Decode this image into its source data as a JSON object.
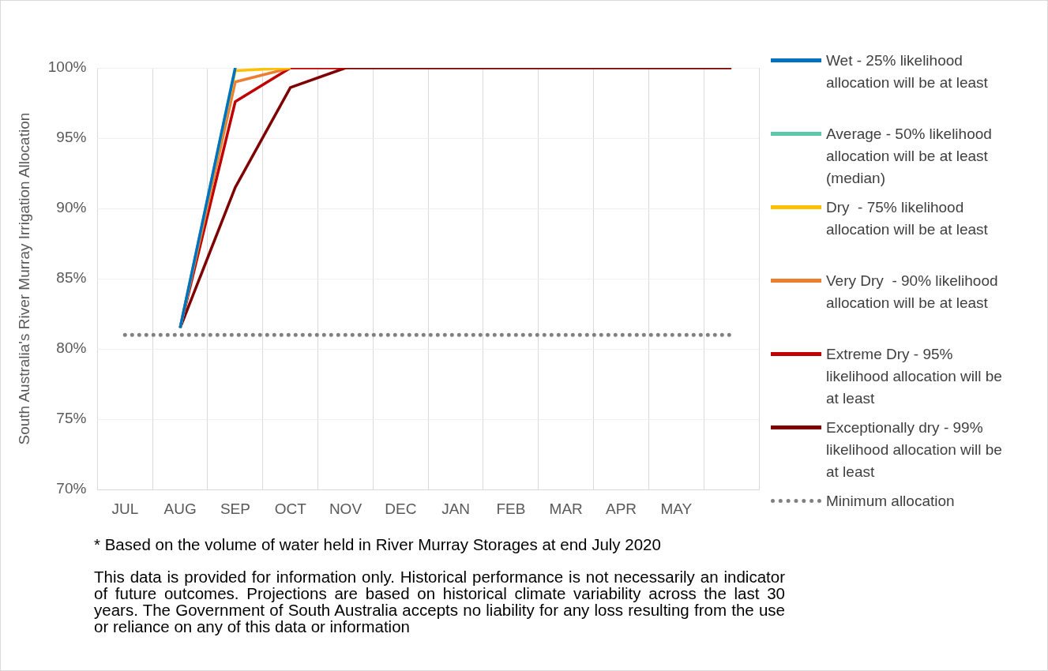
{
  "chart_data": {
    "type": "line",
    "ylabel": "South Australia's River Murray Irrigation Allocation",
    "categories": [
      "JUL",
      "AUG",
      "SEP",
      "OCT",
      "NOV",
      "DEC",
      "JAN",
      "FEB",
      "MAR",
      "APR",
      "MAY",
      null
    ],
    "ylim": [
      70,
      100
    ],
    "yticks": [
      {
        "value": 70,
        "label": "70%"
      },
      {
        "value": 75,
        "label": "75%"
      },
      {
        "value": 80,
        "label": "80%"
      },
      {
        "value": 85,
        "label": "85%"
      },
      {
        "value": 90,
        "label": "90%"
      },
      {
        "value": 95,
        "label": "95%"
      },
      {
        "value": 100,
        "label": "100%"
      }
    ],
    "grid": true,
    "legend": "right",
    "marker": "none",
    "line_style": "solid",
    "series": [
      {
        "name": "Wet - 25% likelihood allocation will be at least",
        "color": "#0070c0",
        "values": [
          null,
          81.5,
          100,
          null,
          null,
          null,
          null,
          null,
          null,
          null,
          null,
          null
        ]
      },
      {
        "name": "Average - 50% likelihood allocation will be at least (median)",
        "color": "#5ac8a8",
        "values": [
          null,
          81.5,
          100,
          null,
          null,
          null,
          null,
          null,
          null,
          null,
          null,
          null
        ]
      },
      {
        "name": "Dry  - 75% likelihood allocation will be at least",
        "color": "#ffc000",
        "values": [
          null,
          81.5,
          99.8,
          100,
          null,
          null,
          null,
          null,
          null,
          null,
          null,
          null
        ]
      },
      {
        "name": "Very Dry  - 90% likelihood allocation will be at least",
        "color": "#ed7d31",
        "values": [
          null,
          81.5,
          99,
          100,
          null,
          null,
          null,
          null,
          null,
          null,
          null,
          null
        ]
      },
      {
        "name": "Extreme Dry - 95% likelihood allocation will be at least",
        "color": "#c00000",
        "values": [
          null,
          81.5,
          97.6,
          100,
          100,
          null,
          null,
          null,
          null,
          null,
          null,
          null
        ]
      },
      {
        "name": "Exceptionally dry - 99% likelihood allocation will be at least",
        "color": "#7f0000",
        "values": [
          null,
          81.5,
          91.5,
          98.6,
          100,
          100,
          100,
          100,
          100,
          100,
          100,
          100
        ]
      },
      {
        "name": "Minimum allocation",
        "color": "#808080",
        "line_style": "dotted",
        "values": [
          81,
          81,
          81,
          81,
          81,
          81,
          81,
          81,
          81,
          81,
          81,
          81
        ]
      }
    ],
    "annotations": [
      "* Based on the volume of water held in River Murray Storages at end July 2020",
      "This data is provided for information only. Historical performance is not necessarily an indicator of future outcomes. Projections are based on historical climate variability across the last 30 years. The Government of South Australia accepts no liability for any loss resulting from the use or reliance on any of this data or information"
    ]
  }
}
